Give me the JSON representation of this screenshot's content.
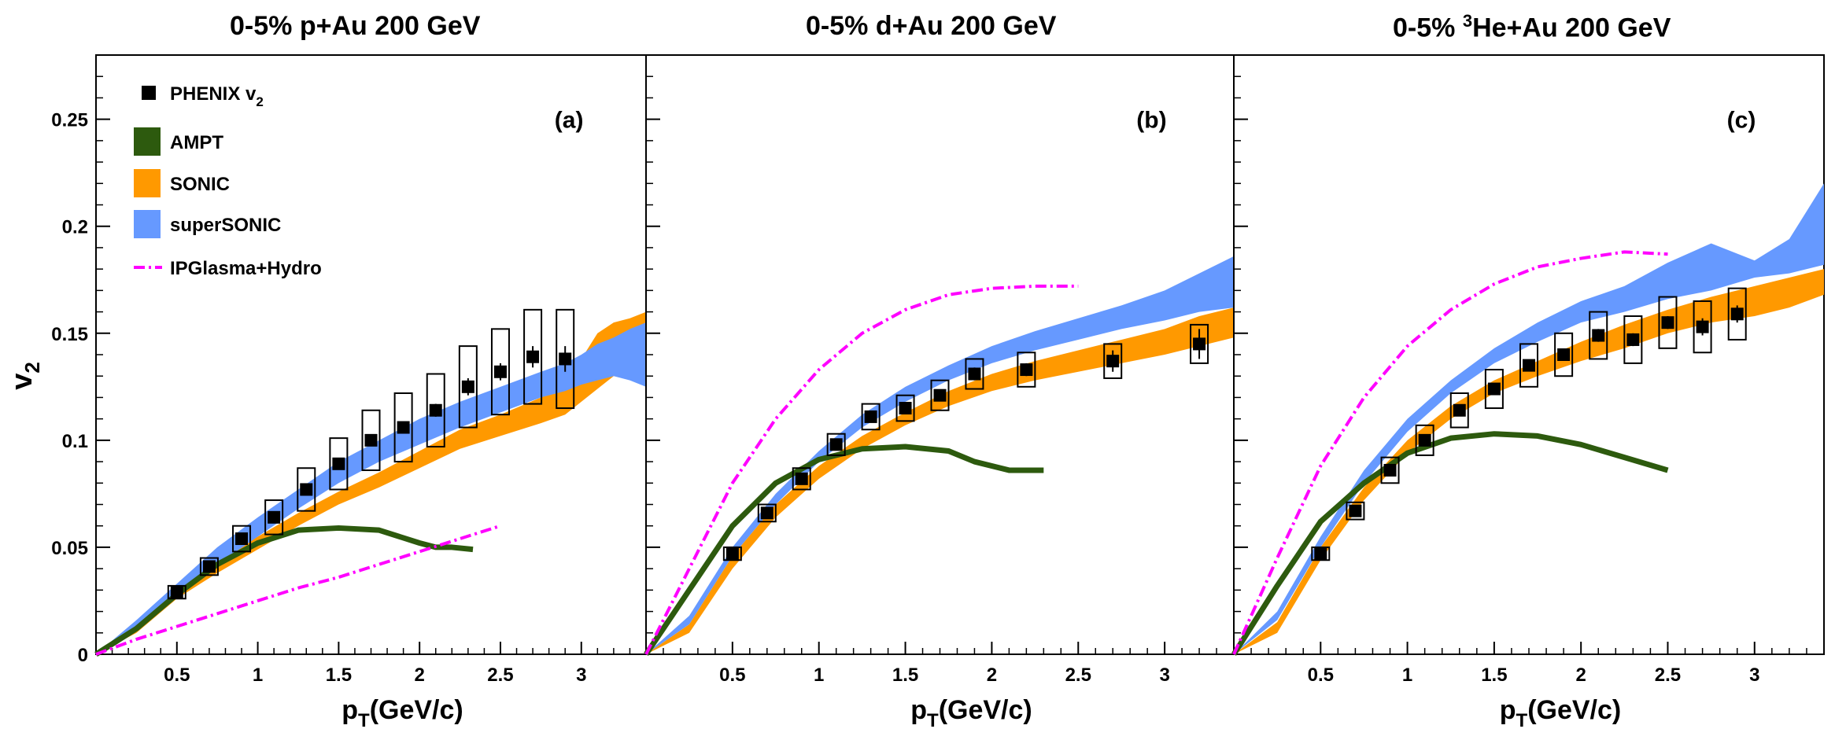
{
  "legend": [
    {
      "label_main": "PHENIX v",
      "label_sub": "2",
      "kind": "marker",
      "color": "#000000"
    },
    {
      "label_main": "AMPT",
      "label_sub": "",
      "kind": "box",
      "color": "#2d5a0e"
    },
    {
      "label_main": "SONIC",
      "label_sub": "",
      "kind": "box",
      "color": "#ff9900"
    },
    {
      "label_main": "superSONIC",
      "label_sub": "",
      "kind": "box",
      "color": "#6699ff"
    },
    {
      "label_main": "IPGlasma+Hydro",
      "label_sub": "",
      "kind": "dashdot",
      "color": "#ff00ff"
    }
  ],
  "colors": {
    "ampt": "#2d5a0e",
    "sonic": "#ff9900",
    "supersonic": "#6699ff",
    "ipglasma": "#ff00ff",
    "data": "#000000"
  },
  "chart_data": [
    {
      "type": "line",
      "title": "0-5% p+Au 200 GeV",
      "title_pre": "0-5% p+Au 200 GeV",
      "title_sup": "",
      "title_post": "",
      "panel_label": "(a)",
      "xlabel_main": "p",
      "xlabel_sub": "T",
      "xlabel_rest": "(GeV/c)",
      "ylabel_main": "v",
      "ylabel_sub": "2",
      "xlim": [
        0,
        3.4
      ],
      "ylim": [
        0,
        0.28
      ],
      "xticks": [
        0.5,
        1,
        1.5,
        2,
        2.5,
        3
      ],
      "xticklabels": [
        "0.5",
        "1",
        "1.5",
        "2",
        "2.5",
        "3"
      ],
      "yticks": [
        0,
        0.05,
        0.1,
        0.15,
        0.2,
        0.25
      ],
      "yticklabels": [
        "0",
        "0.05",
        "0.1",
        "0.15",
        "0.2",
        "0.25"
      ],
      "phenix": {
        "x": [
          0.5,
          0.7,
          0.9,
          1.1,
          1.3,
          1.5,
          1.7,
          1.9,
          2.1,
          2.3,
          2.5,
          2.7,
          2.9
        ],
        "y": [
          0.029,
          0.041,
          0.054,
          0.064,
          0.077,
          0.089,
          0.1,
          0.106,
          0.114,
          0.125,
          0.132,
          0.139,
          0.138
        ],
        "stat": [
          0.002,
          0.002,
          0.002,
          0.002,
          0.002,
          0.002,
          0.002,
          0.002,
          0.003,
          0.004,
          0.004,
          0.005,
          0.006
        ],
        "sys": [
          0.003,
          0.004,
          0.006,
          0.008,
          0.01,
          0.012,
          0.014,
          0.016,
          0.017,
          0.019,
          0.02,
          0.022,
          0.023
        ]
      },
      "ampt": {
        "x": [
          0,
          0.25,
          0.5,
          0.75,
          1,
          1.25,
          1.5,
          1.75,
          2,
          2.1,
          2.2,
          2.33
        ],
        "y": [
          0,
          0.012,
          0.028,
          0.042,
          0.052,
          0.058,
          0.059,
          0.058,
          0.052,
          0.05,
          0.05,
          0.049
        ],
        "width": 0.002
      },
      "sonic": {
        "x": [
          0,
          0.25,
          0.5,
          0.75,
          1,
          1.25,
          1.5,
          1.75,
          2,
          2.25,
          2.5,
          2.75,
          2.9,
          3.0,
          3.1,
          3.2,
          3.3,
          3.4
        ],
        "lo": [
          0,
          0.01,
          0.026,
          0.038,
          0.049,
          0.06,
          0.07,
          0.078,
          0.087,
          0.096,
          0.102,
          0.108,
          0.112,
          0.118,
          0.124,
          0.13,
          0.135,
          0.14
        ],
        "hi": [
          0,
          0.013,
          0.03,
          0.044,
          0.055,
          0.066,
          0.076,
          0.085,
          0.095,
          0.105,
          0.112,
          0.12,
          0.128,
          0.138,
          0.15,
          0.155,
          0.157,
          0.16
        ]
      },
      "supersonic": {
        "x": [
          0,
          0.25,
          0.5,
          0.75,
          1,
          1.25,
          1.5,
          1.75,
          2,
          2.25,
          2.5,
          2.75,
          2.9,
          3.0,
          3.1,
          3.2,
          3.3,
          3.4
        ],
        "lo": [
          0,
          0.012,
          0.028,
          0.042,
          0.055,
          0.068,
          0.08,
          0.09,
          0.098,
          0.106,
          0.113,
          0.12,
          0.123,
          0.126,
          0.128,
          0.13,
          0.128,
          0.125
        ],
        "hi": [
          0,
          0.016,
          0.033,
          0.05,
          0.064,
          0.077,
          0.09,
          0.1,
          0.11,
          0.118,
          0.125,
          0.132,
          0.136,
          0.14,
          0.145,
          0.148,
          0.152,
          0.155
        ]
      },
      "ipglasma": {
        "x": [
          0,
          0.25,
          0.5,
          0.75,
          1,
          1.25,
          1.5,
          1.75,
          2,
          2.25,
          2.5
        ],
        "y": [
          0,
          0.007,
          0.013,
          0.019,
          0.025,
          0.031,
          0.036,
          0.042,
          0.048,
          0.054,
          0.06
        ]
      }
    },
    {
      "type": "line",
      "title": "0-5% d+Au 200 GeV",
      "title_pre": "0-5% d+Au 200 GeV",
      "title_sup": "",
      "title_post": "",
      "panel_label": "(b)",
      "xlabel_main": "p",
      "xlabel_sub": "T",
      "xlabel_rest": "(GeV/c)",
      "ylabel_main": "",
      "ylabel_sub": "",
      "xlim": [
        0,
        3.4
      ],
      "ylim": [
        0,
        0.28
      ],
      "xticks": [
        0.5,
        1,
        1.5,
        2,
        2.5,
        3
      ],
      "xticklabels": [
        "0.5",
        "1",
        "1.5",
        "2",
        "2.5",
        "3"
      ],
      "yticks": [
        0,
        0.05,
        0.1,
        0.15,
        0.2,
        0.25
      ],
      "yticklabels": [],
      "phenix": {
        "x": [
          0.5,
          0.7,
          0.9,
          1.1,
          1.3,
          1.5,
          1.7,
          1.9,
          2.2,
          2.7,
          3.2
        ],
        "y": [
          0.047,
          0.066,
          0.082,
          0.098,
          0.111,
          0.115,
          0.121,
          0.131,
          0.133,
          0.137,
          0.145
        ],
        "stat": [
          0.001,
          0.001,
          0.002,
          0.002,
          0.002,
          0.002,
          0.002,
          0.003,
          0.003,
          0.005,
          0.007
        ],
        "sys": [
          0.003,
          0.004,
          0.005,
          0.005,
          0.006,
          0.006,
          0.007,
          0.007,
          0.008,
          0.008,
          0.009
        ]
      },
      "ampt": {
        "x": [
          0,
          0.25,
          0.5,
          0.75,
          1,
          1.25,
          1.5,
          1.75,
          1.9,
          2.1,
          2.3
        ],
        "y": [
          0,
          0.03,
          0.06,
          0.08,
          0.091,
          0.096,
          0.097,
          0.095,
          0.09,
          0.086,
          0.086
        ],
        "width": 0.002
      },
      "sonic": {
        "x": [
          0,
          0.25,
          0.5,
          0.75,
          1,
          1.25,
          1.5,
          1.75,
          2,
          2.25,
          2.5,
          2.75,
          3.0,
          3.2,
          3.4
        ],
        "lo": [
          0,
          0.01,
          0.04,
          0.064,
          0.082,
          0.096,
          0.107,
          0.116,
          0.123,
          0.128,
          0.132,
          0.136,
          0.14,
          0.144,
          0.148
        ],
        "hi": [
          0,
          0.014,
          0.046,
          0.07,
          0.088,
          0.102,
          0.113,
          0.123,
          0.131,
          0.137,
          0.142,
          0.147,
          0.152,
          0.158,
          0.162
        ]
      },
      "supersonic": {
        "x": [
          0,
          0.25,
          0.5,
          0.75,
          1,
          1.25,
          1.5,
          1.75,
          2,
          2.25,
          2.5,
          2.75,
          3.0,
          3.2,
          3.4
        ],
        "lo": [
          0,
          0.014,
          0.046,
          0.07,
          0.09,
          0.106,
          0.118,
          0.128,
          0.136,
          0.142,
          0.147,
          0.152,
          0.156,
          0.16,
          0.162
        ],
        "hi": [
          0,
          0.018,
          0.05,
          0.075,
          0.095,
          0.112,
          0.125,
          0.135,
          0.144,
          0.151,
          0.157,
          0.163,
          0.17,
          0.178,
          0.186
        ]
      },
      "ipglasma": {
        "x": [
          0,
          0.25,
          0.5,
          0.75,
          1,
          1.25,
          1.5,
          1.75,
          2,
          2.25,
          2.5
        ],
        "y": [
          0,
          0.04,
          0.08,
          0.11,
          0.133,
          0.15,
          0.161,
          0.168,
          0.171,
          0.172,
          0.172
        ]
      }
    },
    {
      "type": "line",
      "title": "0-5% 3He+Au 200 GeV",
      "title_pre": "0-5% ",
      "title_sup": "3",
      "title_post": "He+Au 200 GeV",
      "panel_label": "(c)",
      "xlabel_main": "p",
      "xlabel_sub": "T",
      "xlabel_rest": "(GeV/c)",
      "ylabel_main": "",
      "ylabel_sub": "",
      "xlim": [
        0,
        3.4
      ],
      "ylim": [
        0,
        0.28
      ],
      "xticks": [
        0.5,
        1,
        1.5,
        2,
        2.5,
        3
      ],
      "xticklabels": [
        "0.5",
        "1",
        "1.5",
        "2",
        "2.5",
        "3"
      ],
      "yticks": [
        0,
        0.05,
        0.1,
        0.15,
        0.2,
        0.25
      ],
      "yticklabels": [],
      "phenix": {
        "x": [
          0.5,
          0.7,
          0.9,
          1.1,
          1.3,
          1.5,
          1.7,
          1.9,
          2.1,
          2.3,
          2.5,
          2.7,
          2.9
        ],
        "y": [
          0.047,
          0.067,
          0.086,
          0.1,
          0.114,
          0.124,
          0.135,
          0.14,
          0.149,
          0.147,
          0.155,
          0.153,
          0.159
        ],
        "stat": [
          0.001,
          0.001,
          0.001,
          0.002,
          0.002,
          0.002,
          0.002,
          0.002,
          0.003,
          0.003,
          0.003,
          0.004,
          0.004
        ],
        "sys": [
          0.003,
          0.004,
          0.006,
          0.007,
          0.008,
          0.009,
          0.01,
          0.01,
          0.011,
          0.011,
          0.012,
          0.012,
          0.012
        ]
      },
      "ampt": {
        "x": [
          0,
          0.25,
          0.5,
          0.75,
          1,
          1.25,
          1.5,
          1.75,
          2,
          2.25,
          2.5
        ],
        "y": [
          0,
          0.032,
          0.062,
          0.08,
          0.094,
          0.101,
          0.103,
          0.102,
          0.098,
          0.092,
          0.086
        ],
        "width": 0.002
      },
      "sonic": {
        "x": [
          0,
          0.25,
          0.5,
          0.75,
          1,
          1.25,
          1.5,
          1.75,
          2,
          2.25,
          2.5,
          2.75,
          3.0,
          3.2,
          3.4
        ],
        "lo": [
          0,
          0.01,
          0.044,
          0.072,
          0.094,
          0.11,
          0.122,
          0.13,
          0.137,
          0.143,
          0.15,
          0.155,
          0.158,
          0.162,
          0.168
        ],
        "hi": [
          0,
          0.015,
          0.05,
          0.078,
          0.1,
          0.116,
          0.128,
          0.137,
          0.146,
          0.154,
          0.161,
          0.167,
          0.172,
          0.176,
          0.18
        ]
      },
      "supersonic": {
        "x": [
          0,
          0.25,
          0.5,
          0.75,
          1,
          1.25,
          1.5,
          1.75,
          2,
          2.25,
          2.5,
          2.75,
          3.0,
          3.2,
          3.4
        ],
        "lo": [
          0,
          0.016,
          0.05,
          0.08,
          0.104,
          0.122,
          0.136,
          0.146,
          0.155,
          0.16,
          0.166,
          0.17,
          0.176,
          0.178,
          0.182
        ],
        "hi": [
          0,
          0.02,
          0.055,
          0.086,
          0.11,
          0.128,
          0.143,
          0.155,
          0.165,
          0.172,
          0.183,
          0.192,
          0.184,
          0.194,
          0.22
        ]
      },
      "ipglasma": {
        "x": [
          0,
          0.25,
          0.5,
          0.75,
          1,
          1.25,
          1.5,
          1.75,
          2,
          2.25,
          2.5
        ],
        "y": [
          0,
          0.045,
          0.088,
          0.12,
          0.144,
          0.161,
          0.173,
          0.181,
          0.185,
          0.188,
          0.187
        ]
      }
    }
  ]
}
